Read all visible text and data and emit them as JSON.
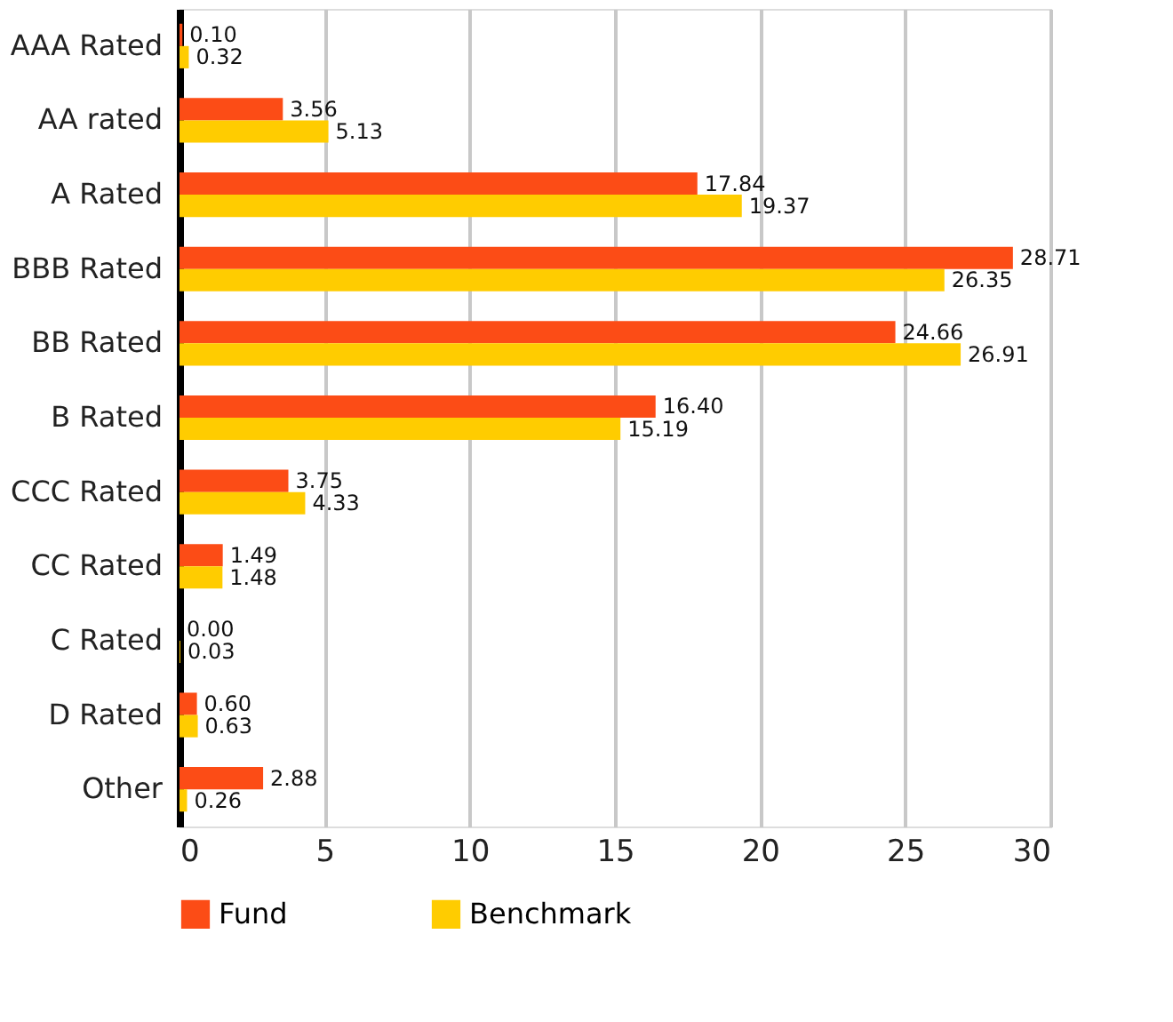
{
  "chart_data": {
    "type": "bar",
    "orientation": "horizontal",
    "categories": [
      "AAA Rated",
      "AA rated",
      "A Rated",
      "BBB Rated",
      "BB Rated",
      "B Rated",
      "CCC Rated",
      "CC Rated",
      "C Rated",
      "D Rated",
      "Other"
    ],
    "series": [
      {
        "name": "Fund",
        "color": "#fc4c16",
        "values": [
          0.1,
          3.56,
          17.84,
          28.71,
          24.66,
          16.4,
          3.75,
          1.49,
          0.0,
          0.6,
          2.88
        ],
        "value_labels": [
          "0.10",
          "3.56",
          "17.84",
          "28.71",
          "24.66",
          "16.40",
          "3.75",
          "1.49",
          "0.00",
          "0.60",
          "2.88"
        ]
      },
      {
        "name": "Benchmark",
        "color": "#ffcc00",
        "values": [
          0.32,
          5.13,
          19.37,
          26.35,
          26.91,
          15.19,
          4.33,
          1.48,
          0.03,
          0.63,
          0.26
        ],
        "value_labels": [
          "0.32",
          "5.13",
          "19.37",
          "26.35",
          "26.91",
          "15.19",
          "4.33",
          "1.48",
          "0.03",
          "0.63",
          "0.26"
        ]
      }
    ],
    "xlim": [
      0,
      30
    ],
    "xticks": [
      0,
      5,
      10,
      15,
      20,
      25,
      30
    ],
    "grid": "x",
    "legend": "bottom"
  }
}
